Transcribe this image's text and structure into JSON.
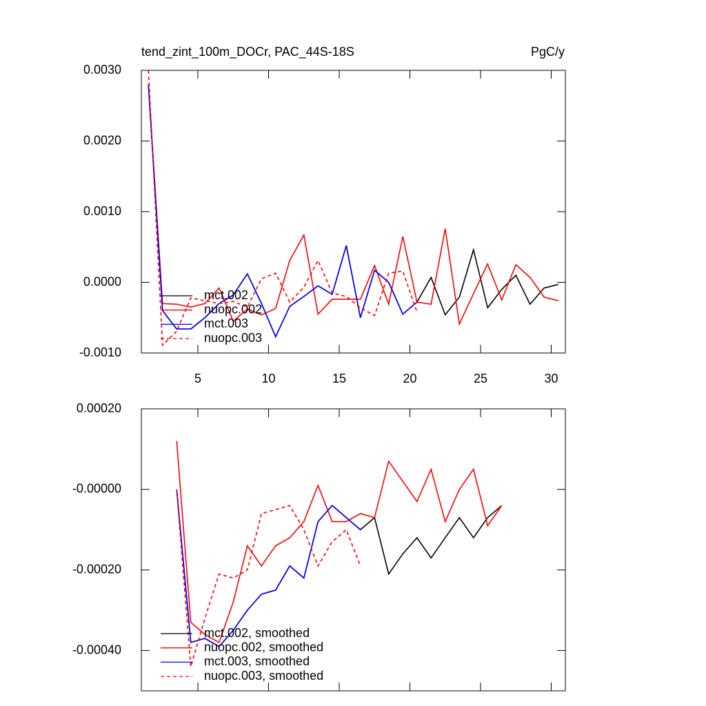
{
  "chart_data": [
    {
      "type": "line",
      "title": "tend_zint_100m_DOCr, PAC_44S-18S",
      "units": "PgC/y",
      "x": [
        1.5,
        2.5,
        3.5,
        4.5,
        5.5,
        6.5,
        7.5,
        8.5,
        9.5,
        10.5,
        11.5,
        12.5,
        13.5,
        14.5,
        15.5,
        16.5,
        17.5,
        18.5,
        19.5,
        20.5,
        21.5,
        22.5,
        23.5,
        24.5,
        25.5,
        26.5,
        27.5,
        28.5,
        29.5,
        30.5
      ],
      "xlim": [
        1,
        31
      ],
      "xticks": [
        5,
        10,
        15,
        20,
        25,
        30
      ],
      "xtick_labels": true,
      "ylim": [
        -0.001,
        0.003
      ],
      "yticks": [
        {
          "value": 0.003,
          "label": "0.0030"
        },
        {
          "value": 0.002,
          "label": "0.0020"
        },
        {
          "value": 0.001,
          "label": "0.0010"
        },
        {
          "value": 0,
          "label": "0.0000"
        },
        {
          "value": -0.001,
          "label": "-0.0010"
        }
      ],
      "legend": "lower left",
      "series": [
        {
          "name": "mct.002",
          "color": "#000000",
          "dash": false,
          "values": [
            0.0028,
            -0.0004,
            -0.00066,
            -0.00066,
            -0.0005,
            -0.0003,
            -0.00018,
            0.00012,
            -0.0003,
            -0.00077,
            -0.00034,
            -0.0002,
            -5e-05,
            -0.00017,
            0.00052,
            -0.0005,
            0.00017,
            0.0,
            -0.00045,
            -0.00028,
            7e-05,
            -0.00046,
            -0.00021,
            0.00046,
            -0.00036,
            -0.0001,
            0.0001,
            -0.00031,
            -8e-05,
            -3e-05
          ]
        },
        {
          "name": "nuopc.002",
          "color": "#ff0000",
          "dash": false,
          "values": [
            0.0028,
            -0.0003,
            -0.00031,
            -0.00035,
            -0.0003,
            -8e-05,
            -0.00055,
            -0.00038,
            -0.00046,
            -0.00037,
            0.00031,
            0.00067,
            -0.00045,
            -0.00024,
            -0.00024,
            -0.00024,
            0.00024,
            -0.00031,
            0.00065,
            -0.00028,
            -0.00031,
            0.00076,
            -0.00059,
            -0.00016,
            0.00026,
            -0.00025,
            0.00025,
            7e-05,
            -0.00021,
            -0.00026
          ]
        },
        {
          "name": "mct.003",
          "color": "#0000ff",
          "dash": false,
          "values": [
            0.0028,
            -0.0004,
            -0.00066,
            -0.00066,
            -0.0005,
            -0.0003,
            -0.00018,
            0.00012,
            -0.0003,
            -0.00077,
            -0.00034,
            -0.0002,
            -5e-05,
            -0.00017,
            0.00052,
            -0.0005,
            0.00017,
            0.0,
            -0.00045,
            -0.00028,
            null,
            null,
            null,
            null,
            null,
            null,
            null,
            null,
            null,
            null
          ]
        },
        {
          "name": "nuopc.003",
          "color": "#ff0000",
          "dash": true,
          "values": [
            0.003,
            -0.00089,
            -0.00069,
            -0.00022,
            -0.00026,
            -0.0003,
            -0.00027,
            -0.00035,
            5e-05,
            0.00013,
            -0.00028,
            -7e-05,
            0.00031,
            -0.00015,
            -0.0002,
            -0.00036,
            -0.00047,
            0.00013,
            0.00016,
            -0.00042,
            null,
            null,
            null,
            null,
            null,
            null,
            null,
            null,
            null,
            null
          ]
        }
      ]
    },
    {
      "type": "line",
      "x": [
        3.5,
        4.5,
        5.5,
        6.5,
        7.5,
        8.5,
        9.5,
        10.5,
        11.5,
        12.5,
        13.5,
        14.5,
        15.5,
        16.5,
        17.5,
        18.5,
        19.5,
        20.5,
        21.5,
        22.5,
        23.5,
        24.5,
        25.5,
        26.5
      ],
      "xlim": [
        1,
        31
      ],
      "xticks": [
        5,
        10,
        15,
        20,
        25,
        30
      ],
      "xtick_labels": false,
      "ylim": [
        -0.0005,
        0.0002
      ],
      "yticks": [
        {
          "value": 0.0002,
          "label": "0.00020"
        },
        {
          "value": 0,
          "label": "-0.00000"
        },
        {
          "value": -0.0002,
          "label": "-0.00020"
        },
        {
          "value": -0.0004,
          "label": "-0.00040"
        }
      ],
      "legend": "lower left",
      "series": [
        {
          "name": "mct.002, smoothed",
          "color": "#000000",
          "dash": false,
          "values": [
            0.0,
            -0.00038,
            -0.00037,
            -0.00039,
            -0.00035,
            -0.0003,
            -0.00026,
            -0.00025,
            -0.00019,
            -0.00022,
            -8e-05,
            -4e-05,
            -7e-05,
            -0.0001,
            -7e-05,
            -0.00021,
            -0.00016,
            -0.00012,
            -0.00017,
            -0.00012,
            -7e-05,
            -0.00012,
            -7e-05,
            -4e-05
          ]
        },
        {
          "name": "nuopc.002, smoothed",
          "color": "#ff0000",
          "dash": false,
          "values": [
            0.00012,
            -0.00033,
            -0.00036,
            -0.00038,
            -0.00028,
            -0.00014,
            -0.00019,
            -0.00014,
            -0.00012,
            -8e-05,
            1e-05,
            -8e-05,
            -8e-05,
            -6e-05,
            -7e-05,
            7e-05,
            2e-05,
            -3e-05,
            5e-05,
            -8e-05,
            0.0,
            5e-05,
            -9e-05,
            -4e-05
          ]
        },
        {
          "name": "mct.003, smoothed",
          "color": "#0000ff",
          "dash": false,
          "values": [
            0.0,
            -0.00038,
            -0.00037,
            -0.00039,
            -0.00035,
            -0.0003,
            -0.00026,
            -0.00025,
            -0.00019,
            -0.00022,
            -8e-05,
            -4e-05,
            -7e-05,
            -0.0001,
            null,
            null,
            null,
            null,
            null,
            null,
            null,
            null,
            null,
            null
          ]
        },
        {
          "name": "nuopc.003, smoothed",
          "color": "#ff0000",
          "dash": true,
          "values": [
            0.0,
            -0.00044,
            -0.00032,
            -0.00021,
            -0.00022,
            -0.0002,
            -6e-05,
            -5e-05,
            -4e-05,
            -0.0001,
            -0.00019,
            -0.00013,
            -0.0001,
            -0.00019,
            null,
            null,
            null,
            null,
            null,
            null,
            null,
            null,
            null,
            null
          ]
        }
      ]
    }
  ]
}
